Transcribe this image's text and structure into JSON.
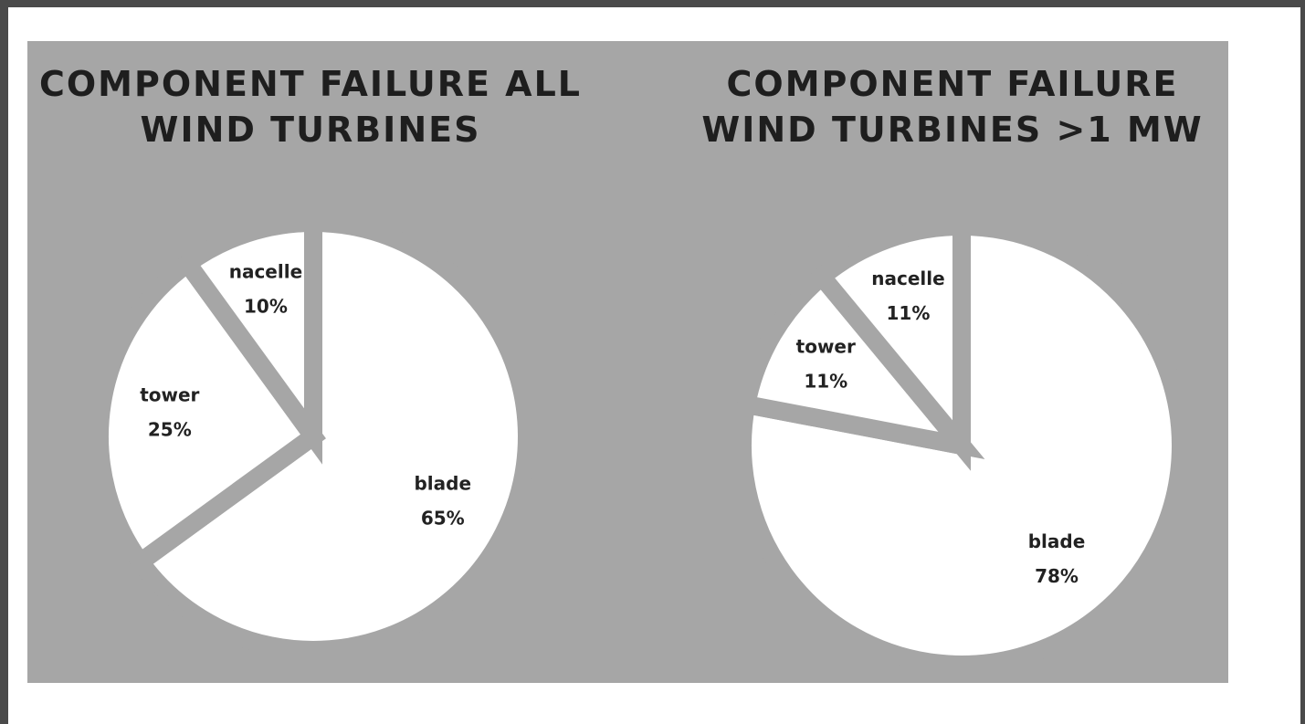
{
  "chart_data": [
    {
      "type": "pie",
      "title": "COMPONENT FAILURE ALL WIND TURBINES",
      "categories": [
        "blade",
        "tower",
        "nacelle"
      ],
      "values": [
        65,
        25,
        10
      ],
      "value_labels": [
        "65%",
        "25%",
        "10%"
      ],
      "color": "#ffffff"
    },
    {
      "type": "pie",
      "title": "COMPONENT FAILURE WIND TURBINES >1 MW",
      "categories": [
        "blade",
        "tower",
        "nacelle"
      ],
      "values": [
        78,
        11,
        11
      ],
      "value_labels": [
        "78%",
        "11%",
        "11%"
      ],
      "color": "#ffffff"
    }
  ]
}
